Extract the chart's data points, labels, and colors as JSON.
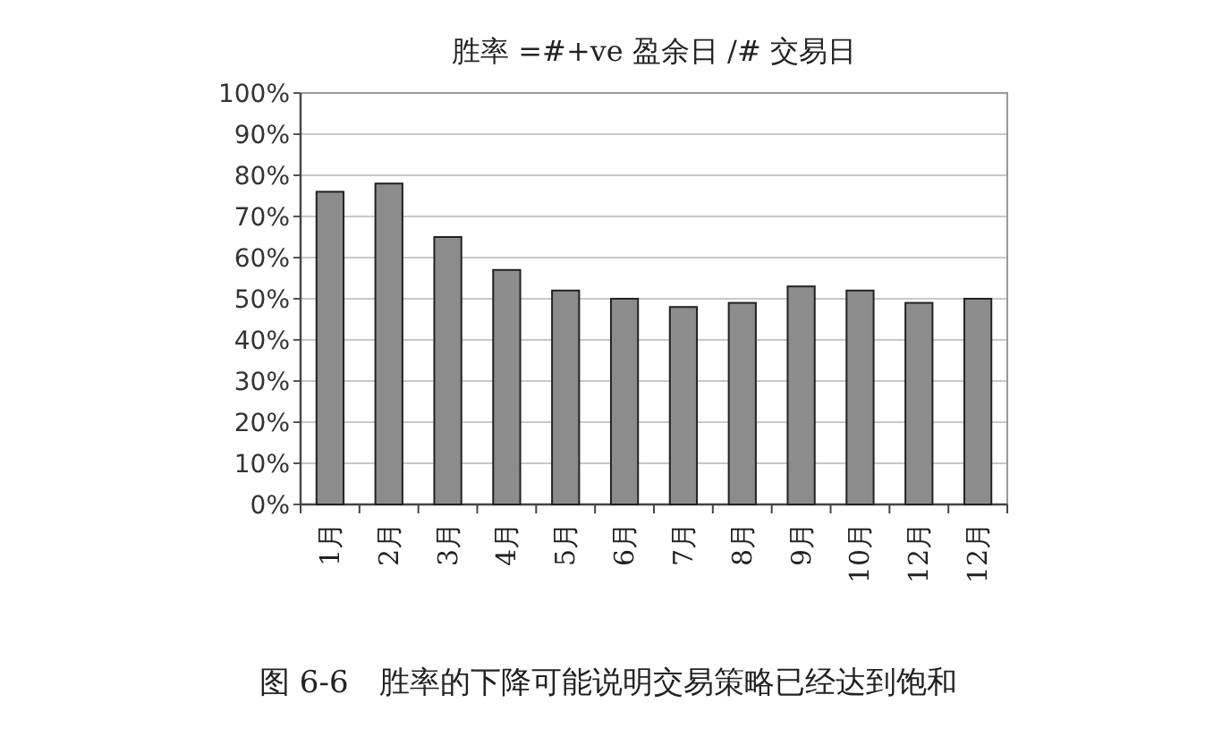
{
  "chart_data": {
    "type": "bar",
    "title": "胜率 =#+ve 盈余日 /# 交易日",
    "categories": [
      "1月",
      "2月",
      "3月",
      "4月",
      "5月",
      "6月",
      "7月",
      "8月",
      "9月",
      "10月",
      "12月",
      "12月"
    ],
    "series": [
      {
        "color": "#8c8c8c",
        "values": [
          76,
          78,
          65,
          57,
          52,
          50,
          48,
          49,
          53,
          52,
          49,
          50
        ]
      }
    ],
    "ylim": [
      0,
      100
    ],
    "yticks": [
      {
        "value": 0,
        "label": "0%"
      },
      {
        "value": 10,
        "label": "10%"
      },
      {
        "value": 20,
        "label": "20%"
      },
      {
        "value": 30,
        "label": "30%"
      },
      {
        "value": 40,
        "label": "40%"
      },
      {
        "value": 50,
        "label": "50%"
      },
      {
        "value": 60,
        "label": "60%"
      },
      {
        "value": 70,
        "label": "70%"
      },
      {
        "value": 80,
        "label": "80%"
      },
      {
        "value": 90,
        "label": "90%"
      },
      {
        "value": 100,
        "label": "100%"
      }
    ],
    "grid": "y",
    "annotations": [
      "图 6-6　胜率的下降可能说明交易策略已经达到饱和"
    ]
  }
}
